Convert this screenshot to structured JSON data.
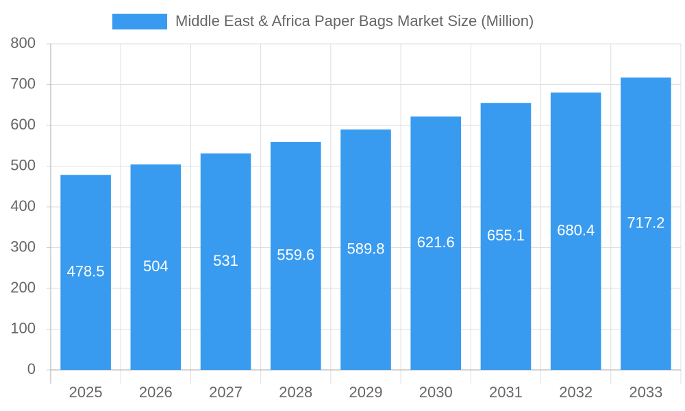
{
  "chart_data": {
    "type": "bar",
    "categories": [
      "2025",
      "2026",
      "2027",
      "2028",
      "2029",
      "2030",
      "2031",
      "2032",
      "2033"
    ],
    "series": [
      {
        "name": "Middle East & Africa Paper Bags Market Size (Million)",
        "color": "#389bf0",
        "values": [
          478.5,
          504,
          531,
          559.6,
          589.8,
          621.6,
          655.1,
          680.4,
          717.2
        ]
      }
    ],
    "ylim": [
      0,
      800
    ],
    "yticks": [
      0,
      100,
      200,
      300,
      400,
      500,
      600,
      700,
      800
    ],
    "grid": true
  }
}
